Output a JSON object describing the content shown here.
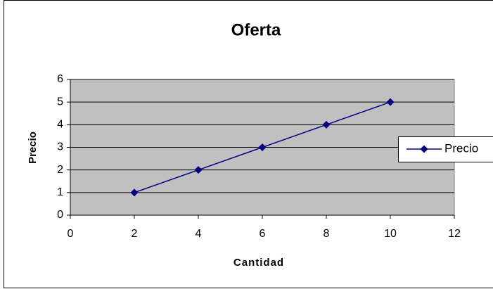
{
  "chart_data": {
    "type": "line",
    "title": "Oferta",
    "x_label": "Cantidad",
    "y_label": "Precio",
    "x": [
      2,
      4,
      6,
      8,
      10
    ],
    "series": [
      {
        "name": "Precio",
        "color": "#000080",
        "values": [
          1,
          2,
          3,
          4,
          5
        ]
      }
    ],
    "xlim": [
      0,
      12
    ],
    "xticks": [
      0,
      2,
      4,
      6,
      8,
      10,
      12
    ],
    "ylim": [
      0,
      6
    ],
    "yticks": [
      0,
      1,
      2,
      3,
      4,
      5,
      6
    ],
    "grid": true,
    "legend": "right",
    "plot_background": "#c0c0c0"
  }
}
